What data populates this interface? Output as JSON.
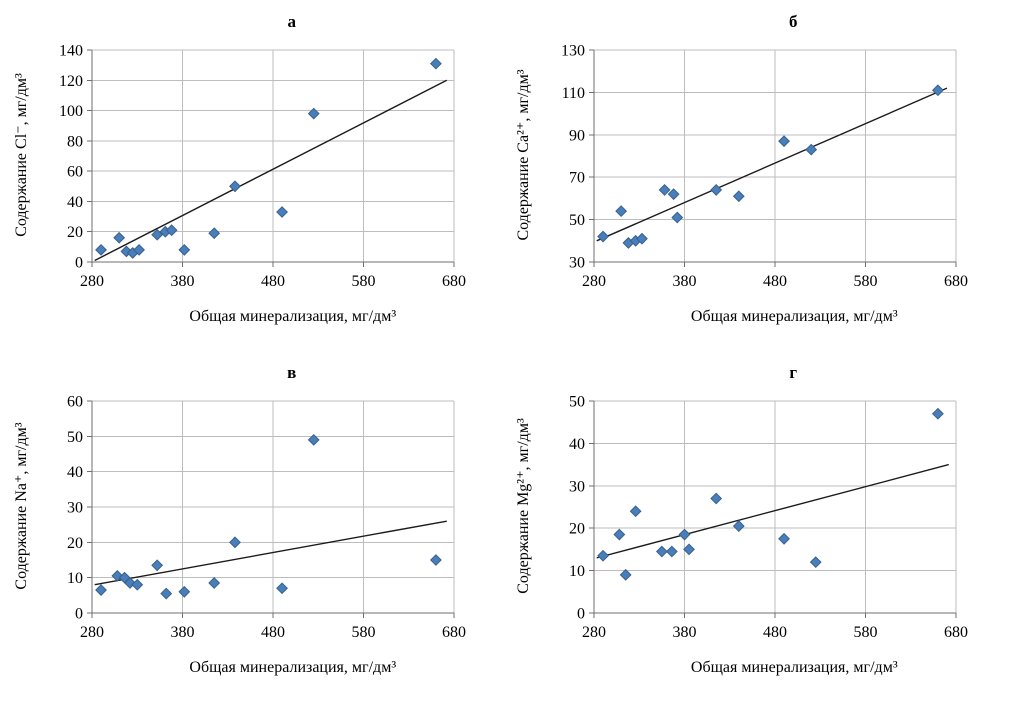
{
  "charts_common": {
    "marker_color": "#4a7ebb",
    "marker_stroke": "#36618e",
    "trend_color": "#1b1b1b",
    "grid_color": "#bdbdbd",
    "axis_color": "#6f6f6f"
  },
  "chart_data": [
    {
      "type": "scatter",
      "label": "а",
      "ylabel": "Содержание Cl⁻, мг/дм³",
      "xlabel": "Общая минерализация, мг/дм³",
      "xlim": [
        280,
        680
      ],
      "xticks": [
        280,
        380,
        480,
        580,
        680
      ],
      "ylim": [
        0,
        140
      ],
      "yticks": [
        0,
        20,
        40,
        60,
        80,
        100,
        120,
        140
      ],
      "points": [
        [
          290,
          8
        ],
        [
          310,
          16
        ],
        [
          318,
          7
        ],
        [
          325,
          6
        ],
        [
          332,
          8
        ],
        [
          352,
          18
        ],
        [
          361,
          20
        ],
        [
          368,
          21
        ],
        [
          382,
          8
        ],
        [
          415,
          19
        ],
        [
          438,
          50
        ],
        [
          490,
          33
        ],
        [
          525,
          98
        ],
        [
          660,
          131
        ]
      ],
      "trend": [
        [
          283,
          1
        ],
        [
          672,
          120
        ]
      ],
      "legend": "none",
      "grid": "on"
    },
    {
      "type": "scatter",
      "label": "б",
      "ylabel": "Содержание Ca²⁺, мг/дм³",
      "xlabel": "Общая минерализация, мг/дм³",
      "xlim": [
        280,
        680
      ],
      "xticks": [
        280,
        380,
        480,
        580,
        680
      ],
      "ylim": [
        30,
        130
      ],
      "yticks": [
        30,
        50,
        70,
        90,
        110,
        130
      ],
      "points": [
        [
          290,
          42
        ],
        [
          310,
          54
        ],
        [
          318,
          39
        ],
        [
          326,
          40
        ],
        [
          333,
          41
        ],
        [
          358,
          64
        ],
        [
          368,
          62
        ],
        [
          372,
          51
        ],
        [
          415,
          64
        ],
        [
          440,
          61
        ],
        [
          490,
          87
        ],
        [
          520,
          83
        ],
        [
          660,
          111
        ]
      ],
      "trend": [
        [
          283,
          40
        ],
        [
          670,
          112
        ]
      ],
      "legend": "none",
      "grid": "on"
    },
    {
      "type": "scatter",
      "label": "в",
      "ylabel": "Содержание Na⁺, мг/дм³",
      "xlabel": "Общая минерализация, мг/дм³",
      "xlim": [
        280,
        680
      ],
      "xticks": [
        280,
        380,
        480,
        580,
        680
      ],
      "ylim": [
        0,
        60
      ],
      "yticks": [
        0,
        10,
        20,
        30,
        40,
        50,
        60
      ],
      "points": [
        [
          290,
          6.5
        ],
        [
          308,
          10.5
        ],
        [
          316,
          10
        ],
        [
          322,
          8.5
        ],
        [
          330,
          8
        ],
        [
          352,
          13.5
        ],
        [
          362,
          5.5
        ],
        [
          382,
          6
        ],
        [
          415,
          8.5
        ],
        [
          438,
          20
        ],
        [
          490,
          7
        ],
        [
          525,
          49
        ],
        [
          660,
          15
        ]
      ],
      "trend": [
        [
          283,
          8
        ],
        [
          672,
          26
        ]
      ],
      "legend": "none",
      "grid": "on"
    },
    {
      "type": "scatter",
      "label": "г",
      "ylabel": "Содержание Mg²⁺, мг/дм³",
      "xlabel": "Общая минерализация, мг/дм³",
      "xlim": [
        280,
        680
      ],
      "xticks": [
        280,
        380,
        480,
        580,
        680
      ],
      "ylim": [
        0,
        50
      ],
      "yticks": [
        0,
        10,
        20,
        30,
        40,
        50
      ],
      "points": [
        [
          290,
          13.5
        ],
        [
          308,
          18.5
        ],
        [
          315,
          9
        ],
        [
          326,
          24
        ],
        [
          355,
          14.5
        ],
        [
          366,
          14.5
        ],
        [
          380,
          18.5
        ],
        [
          385,
          15
        ],
        [
          415,
          27
        ],
        [
          440,
          20.5
        ],
        [
          490,
          17.5
        ],
        [
          525,
          12
        ],
        [
          660,
          47
        ]
      ],
      "trend": [
        [
          283,
          13
        ],
        [
          672,
          35
        ]
      ],
      "legend": "none",
      "grid": "on"
    }
  ]
}
